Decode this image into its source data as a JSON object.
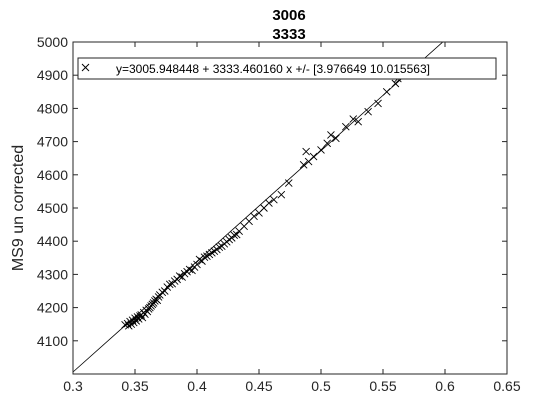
{
  "chart_data": {
    "type": "scatter",
    "title_lines": [
      "3006",
      "3333"
    ],
    "xlabel": "",
    "ylabel": "MS9 un corrected",
    "xlim": [
      0.3,
      0.65
    ],
    "ylim": [
      4000,
      5000
    ],
    "xticks": [
      0.3,
      0.35,
      0.4,
      0.45,
      0.5,
      0.55,
      0.6,
      0.65
    ],
    "xtick_labels": [
      "0.3",
      "0.35",
      "0.4",
      "0.45",
      "0.5",
      "0.55",
      "0.6",
      "0.65"
    ],
    "yticks": [
      4100,
      4200,
      4300,
      4400,
      4500,
      4600,
      4700,
      4800,
      4900,
      5000
    ],
    "ytick_labels": [
      "4100",
      "4200",
      "4300",
      "4400",
      "4500",
      "4600",
      "4700",
      "4800",
      "4900",
      "5000"
    ],
    "grid": false,
    "legend_position": "top",
    "legend_text": "y=3005.948448 + 3333.460160 x +/- [3.976649 10.015563]",
    "fit_line": {
      "intercept": 3005.948448,
      "slope": 3333.46016
    },
    "colors": {
      "marker": "#000000",
      "line": "#000000",
      "axes": "#262626"
    },
    "series": [
      {
        "marker": "x",
        "x": [
          0.342,
          0.344,
          0.345,
          0.346,
          0.347,
          0.348,
          0.349,
          0.35,
          0.351,
          0.352,
          0.353,
          0.354,
          0.355,
          0.356,
          0.357,
          0.358,
          0.359,
          0.36,
          0.361,
          0.362,
          0.363,
          0.364,
          0.365,
          0.366,
          0.367,
          0.368,
          0.369,
          0.37,
          0.372,
          0.374,
          0.376,
          0.378,
          0.38,
          0.382,
          0.384,
          0.386,
          0.388,
          0.39,
          0.392,
          0.394,
          0.396,
          0.398,
          0.4,
          0.402,
          0.404,
          0.406,
          0.408,
          0.41,
          0.412,
          0.414,
          0.416,
          0.418,
          0.42,
          0.422,
          0.424,
          0.426,
          0.428,
          0.43,
          0.432,
          0.434,
          0.438,
          0.442,
          0.446,
          0.45,
          0.454,
          0.458,
          0.462,
          0.468,
          0.474,
          0.486,
          0.488,
          0.49,
          0.494,
          0.5,
          0.505,
          0.508,
          0.512,
          0.52,
          0.526,
          0.53,
          0.538,
          0.546,
          0.553,
          0.56,
          0.562
        ],
        "y": [
          4148,
          4152,
          4145,
          4158,
          4150,
          4162,
          4155,
          4168,
          4160,
          4172,
          4166,
          4175,
          4178,
          4170,
          4185,
          4180,
          4192,
          4188,
          4196,
          4200,
          4205,
          4210,
          4214,
          4220,
          4225,
          4222,
          4232,
          4238,
          4246,
          4250,
          4262,
          4270,
          4272,
          4280,
          4285,
          4295,
          4292,
          4302,
          4308,
          4315,
          4312,
          4322,
          4330,
          4345,
          4340,
          4352,
          4355,
          4360,
          4365,
          4370,
          4375,
          4382,
          4385,
          4392,
          4398,
          4405,
          4410,
          4418,
          4420,
          4430,
          4445,
          4460,
          4475,
          4485,
          4500,
          4515,
          4525,
          4540,
          4575,
          4630,
          4670,
          4640,
          4655,
          4675,
          4695,
          4720,
          4710,
          4745,
          4768,
          4760,
          4790,
          4815,
          4850,
          4875,
          4890
        ]
      }
    ]
  }
}
